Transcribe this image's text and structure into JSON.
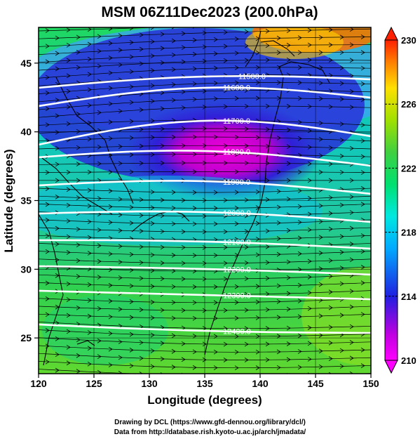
{
  "title": "MSM 06Z11Dec2023 (200.0hPa)",
  "xaxis": {
    "label": "Longitude (degrees)",
    "range": [
      120,
      150
    ],
    "ticks": [
      "120",
      "125",
      "130",
      "135",
      "140",
      "145",
      "150"
    ]
  },
  "yaxis": {
    "label": "Latitude (degrees)",
    "range": [
      22.4,
      47.6
    ],
    "ticks": [
      "25",
      "30",
      "35",
      "40",
      "45"
    ]
  },
  "colorbar": {
    "range": [
      210,
      230
    ],
    "ticks": [
      "210",
      "214",
      "218",
      "222",
      "226",
      "230"
    ]
  },
  "contours": [
    "11500.0",
    "11600.0",
    "11700.0",
    "11800.0",
    "11900.0",
    "12000.0",
    "12100.0",
    "12200.0",
    "12300.0",
    "12400.0"
  ],
  "credits": [
    "Drawing by DCL (https://www.gfd-dennou.org/library/dcl/)",
    "Data from http://database.rish.kyoto-u.ac.jp/arch/jmadata/"
  ]
}
